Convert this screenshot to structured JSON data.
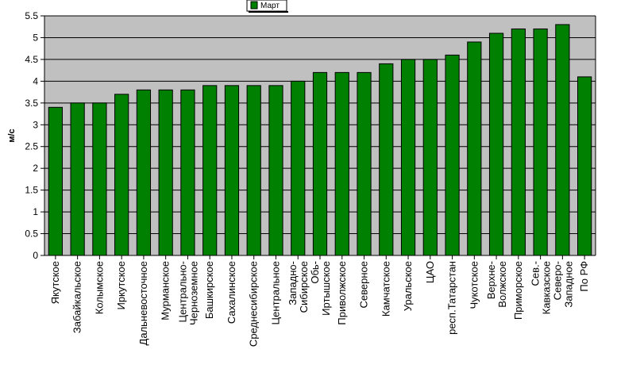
{
  "chart_data": {
    "type": "bar",
    "ylabel": "м/с",
    "ylim": [
      0,
      5.5
    ],
    "yticks": [
      "0",
      "0.5",
      "1",
      "1.5",
      "2",
      "2.5",
      "3",
      "3.5",
      "4",
      "4.5",
      "5",
      "5.5"
    ],
    "grid": true,
    "legend_position": "top-center",
    "categories": [
      "Якутское",
      "Забайкальское",
      "Колымское",
      "Иркутское",
      "Дальневосточное",
      "Мурманское",
      "Центрально-\nЧерноземное",
      "Башкирское",
      "Сахалинское",
      "Среднесибирское",
      "Центральное",
      "Западно-\nСибирское",
      "Обь-\nИртышское",
      "Приволжское",
      "Северное",
      "Камчатское",
      "Уральское",
      "ЦАО",
      "респ.Татарстан",
      "Чукотское",
      "Верхне-\nВолжское",
      "Приморское",
      "Сев.-\nКавказское",
      "Северо-\nЗападное",
      "По РФ"
    ],
    "series": [
      {
        "name": "Март",
        "color": "#008000",
        "values": [
          3.4,
          3.5,
          3.5,
          3.7,
          3.8,
          3.8,
          3.8,
          3.9,
          3.9,
          3.9,
          3.9,
          4.0,
          4.2,
          4.2,
          4.2,
          4.4,
          4.5,
          4.5,
          4.6,
          4.9,
          5.1,
          5.2,
          5.2,
          5.3,
          4.1
        ]
      }
    ],
    "colors": {
      "plot_background": "#c0c0c0",
      "bar": "#008000"
    }
  }
}
